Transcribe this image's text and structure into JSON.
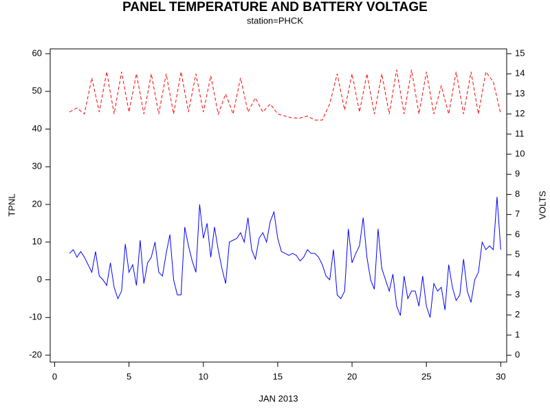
{
  "chart_data": {
    "type": "line",
    "title": "PANEL TEMPERATURE AND BATTERY VOLTAGE",
    "subtitle": "station=PHCK",
    "xlabel": "JAN 2013",
    "ylabel": "TPNL",
    "y2label": "VOLTS",
    "xlim": [
      -0.3,
      30.4
    ],
    "xticks": [
      0,
      5,
      10,
      15,
      20,
      25,
      30
    ],
    "ylim": [
      -21.83,
      61.28
    ],
    "yticks": [
      -20,
      -10,
      0,
      10,
      20,
      30,
      40,
      50,
      60
    ],
    "y2lim": [
      -0.34,
      15.24
    ],
    "y2ticks": [
      0,
      1,
      2,
      3,
      4,
      5,
      6,
      7,
      8,
      9,
      10,
      11,
      12,
      13,
      14,
      15
    ],
    "series": [
      {
        "color": "#0000ff",
        "line_style": "solid",
        "x": [
          1,
          1.25,
          1.5,
          1.75,
          2,
          2.25,
          2.5,
          2.75,
          3,
          3.25,
          3.5,
          3.75,
          4,
          4.25,
          4.5,
          4.75,
          5,
          5.25,
          5.5,
          5.75,
          6,
          6.25,
          6.5,
          6.75,
          7,
          7.25,
          7.5,
          7.75,
          8,
          8.25,
          8.5,
          8.75,
          9,
          9.25,
          9.5,
          9.75,
          10,
          10.25,
          10.5,
          10.75,
          11,
          11.25,
          11.5,
          11.75,
          12,
          12.25,
          12.5,
          12.75,
          13,
          13.25,
          13.5,
          13.75,
          14,
          14.25,
          14.5,
          14.75,
          15,
          15.25,
          15.5,
          15.75,
          16,
          16.25,
          16.5,
          16.75,
          17,
          17.25,
          17.5,
          17.75,
          18,
          18.25,
          18.5,
          18.75,
          19,
          19.25,
          19.5,
          19.75,
          20,
          20.25,
          20.5,
          20.75,
          21,
          21.25,
          21.5,
          21.75,
          22,
          22.25,
          22.5,
          22.75,
          23,
          23.25,
          23.5,
          23.75,
          24,
          24.25,
          24.5,
          24.75,
          25,
          25.25,
          25.5,
          25.75,
          26,
          26.25,
          26.5,
          26.75,
          27,
          27.25,
          27.5,
          27.75,
          28,
          28.25,
          28.5,
          28.75,
          29,
          29.25,
          29.5,
          29.75,
          30
        ],
        "values": [
          7,
          8,
          6,
          7.5,
          6,
          4,
          2,
          7.5,
          1,
          0,
          -1.5,
          4.5,
          -2,
          -5,
          -3,
          9.5,
          2,
          4,
          -1.5,
          10.5,
          -1,
          4.5,
          6,
          10,
          2,
          1,
          7,
          12,
          0,
          -4,
          -4,
          14,
          9,
          5,
          2,
          20,
          11,
          15,
          6,
          14,
          8,
          3,
          -1,
          10,
          10.5,
          11,
          12.5,
          10,
          16.5,
          8,
          5.5,
          11,
          12.5,
          10,
          15.5,
          18,
          11,
          7.5,
          7,
          6.5,
          7,
          6.5,
          5,
          6,
          8,
          7,
          7,
          6,
          4,
          1,
          0,
          8,
          -4,
          -5,
          -3,
          13.5,
          4.5,
          7,
          9,
          16.5,
          6,
          0,
          -2.5,
          13.5,
          3,
          0,
          -3,
          1.5,
          -7,
          -9.5,
          1,
          -5,
          -3,
          -3,
          -7,
          1,
          -7,
          -10,
          -1,
          -3,
          -2,
          -8,
          4,
          -2,
          -5.5,
          -4,
          5.5,
          -3,
          -6,
          0,
          2,
          10,
          8,
          9,
          8,
          22,
          8
        ]
      },
      {
        "color": "#ff0000",
        "line_style": "dashed",
        "axis": "y2",
        "x": [
          1,
          1.5,
          2,
          2.5,
          3,
          3.5,
          4,
          4.5,
          5,
          5.5,
          6,
          6.5,
          7,
          7.5,
          8,
          8.5,
          9,
          9.5,
          10,
          10.5,
          11,
          11.5,
          12,
          12.5,
          13,
          13.5,
          14,
          14.5,
          15,
          15.5,
          16,
          16.5,
          17,
          17.5,
          18,
          18.5,
          19,
          19.5,
          20,
          20.5,
          21,
          21.5,
          22,
          22.5,
          23,
          23.5,
          24,
          24.5,
          25,
          25.5,
          26,
          26.5,
          27,
          27.5,
          28,
          28.5,
          29,
          29.5,
          30
        ],
        "values": [
          12.1,
          12.3,
          12.0,
          13.8,
          12.1,
          14.1,
          12.0,
          14.1,
          12.1,
          14.0,
          12.0,
          14.0,
          12.0,
          14.0,
          12.0,
          14.1,
          12.1,
          14.0,
          12.1,
          13.9,
          12.0,
          13.0,
          12.0,
          13.8,
          12.1,
          12.8,
          12.1,
          12.5,
          12.0,
          11.9,
          11.8,
          11.8,
          11.9,
          11.7,
          11.7,
          12.5,
          14.0,
          12.2,
          14.0,
          12.1,
          14.0,
          12.0,
          14.0,
          12.0,
          14.2,
          12.0,
          14.2,
          12.0,
          14.1,
          12.0,
          13.4,
          12.0,
          14.1,
          12.0,
          14.1,
          12.0,
          14.1,
          13.6,
          12.0
        ]
      }
    ]
  }
}
